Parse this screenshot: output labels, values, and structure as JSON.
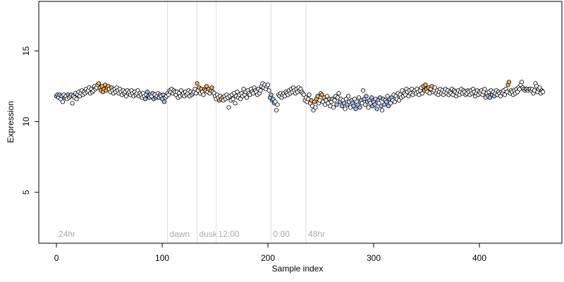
{
  "chart_data": {
    "type": "scatter",
    "xlabel": "Sample index",
    "ylabel": "Expression",
    "xlim": [
      -16.7,
      478
    ],
    "ylim": [
      1.4,
      18.5
    ],
    "xticks": [
      0,
      100,
      200,
      300,
      400
    ],
    "yticks": [
      5,
      10,
      15
    ],
    "palette": [
      "#ffffff",
      "#f4b060",
      "#a8c4f0"
    ],
    "stroke": "#000000",
    "markers": [
      {
        "label": "24hr",
        "x": 0,
        "line": false
      },
      {
        "label": "dawn",
        "x": 105,
        "line": true
      },
      {
        "label": "dusk",
        "x": 133,
        "line": true
      },
      {
        "label": "12:00",
        "x": 151,
        "line": true
      },
      {
        "label": "0:00",
        "x": 203,
        "line": true
      },
      {
        "label": "48hr",
        "x": 236,
        "line": true
      }
    ],
    "values": [
      11.8,
      11.9,
      11.7,
      11.9,
      11.6,
      11.8,
      11.4,
      11.9,
      11.7,
      11.8,
      11.6,
      11.9,
      11.7,
      11.8,
      11.9,
      11.3,
      11.8,
      11.7,
      12.0,
      11.6,
      11.9,
      12.1,
      11.8,
      12.0,
      12.2,
      11.9,
      12.1,
      12.0,
      12.3,
      12.1,
      12.2,
      12.4,
      12.0,
      12.3,
      12.1,
      12.2,
      12.5,
      12.3,
      12.4,
      12.6,
      12.7,
      12.4,
      12.2,
      12.5,
      12.1,
      12.3,
      12.6,
      12.2,
      12.4,
      12.5,
      12.3,
      12.1,
      12.4,
      12.2,
      12.0,
      12.3,
      12.1,
      12.4,
      12.2,
      12.0,
      12.3,
      12.1,
      11.9,
      12.2,
      12.0,
      12.1,
      11.8,
      12.2,
      12.0,
      12.1,
      11.9,
      12.2,
      12.0,
      11.8,
      12.1,
      11.9,
      12.0,
      12.2,
      11.8,
      12.0,
      11.9,
      11.7,
      12.0,
      11.8,
      11.6,
      11.9,
      12.1,
      11.8,
      11.7,
      11.9,
      11.8,
      12.0,
      11.6,
      11.9,
      11.7,
      11.8,
      12.0,
      11.7,
      11.9,
      11.8,
      11.6,
      11.9,
      11.4,
      11.7,
      11.8,
      12.0,
      11.9,
      12.2,
      12.1,
      12.3,
      12.0,
      12.2,
      12.1,
      11.9,
      12.1,
      11.7,
      12.0,
      11.8,
      12.2,
      11.9,
      12.0,
      11.8,
      12.1,
      11.9,
      12.0,
      12.2,
      11.8,
      12.1,
      11.9,
      12.0,
      12.1,
      12.3,
      12.0,
      12.7,
      12.2,
      12.4,
      12.0,
      12.3,
      12.1,
      11.9,
      12.3,
      12.2,
      12.5,
      12.1,
      12.3,
      12.0,
      12.2,
      12.4,
      12.1,
      12.0,
      11.8,
      11.6,
      11.9,
      11.7,
      11.5,
      11.8,
      11.6,
      11.7,
      11.5,
      11.8,
      11.6,
      11.9,
      11.7,
      11.0,
      11.8,
      11.5,
      11.9,
      11.6,
      12.0,
      11.3,
      11.8,
      12.1,
      11.7,
      11.9,
      11.6,
      12.0,
      11.8,
      12.3,
      11.9,
      12.1,
      11.7,
      12.2,
      12.0,
      11.9,
      12.3,
      12.1,
      12.0,
      12.4,
      12.2,
      12.1,
      11.9,
      12.3,
      12.0,
      12.2,
      12.5,
      12.7,
      12.4,
      12.6,
      12.3,
      12.5,
      12.6,
      12.2,
      11.7,
      11.9,
      11.5,
      11.6,
      11.3,
      11.4,
      10.8,
      11.2,
      11.9,
      11.8,
      12.0,
      11.7,
      11.9,
      12.0,
      11.8,
      12.1,
      12.0,
      11.9,
      12.2,
      12.0,
      12.3,
      12.1,
      12.4,
      12.2,
      12.0,
      12.3,
      12.1,
      12.4,
      12.2,
      12.3,
      12.1,
      12.0,
      11.9,
      11.5,
      11.7,
      11.4,
      11.6,
      11.9,
      11.3,
      11.5,
      11.1,
      10.8,
      11.4,
      11.0,
      11.6,
      11.8,
      11.3,
      11.5,
      12.0,
      11.9,
      11.4,
      11.7,
      11.2,
      11.5,
      11.8,
      11.3,
      11.6,
      11.1,
      11.4,
      11.6,
      11.0,
      11.5,
      11.8,
      11.2,
      11.7,
      12.0,
      11.4,
      11.6,
      11.1,
      11.5,
      11.3,
      10.9,
      11.6,
      11.2,
      11.8,
      11.4,
      11.0,
      11.5,
      11.3,
      11.1,
      11.6,
      10.9,
      11.4,
      11.2,
      11.7,
      11.0,
      11.5,
      11.3,
      12.2,
      11.6,
      11.2,
      11.8,
      11.4,
      11.0,
      11.5,
      11.3,
      11.7,
      11.1,
      11.4,
      11.2,
      11.6,
      10.9,
      11.5,
      11.3,
      11.7,
      11.1,
      10.8,
      11.6,
      11.2,
      11.5,
      11.4,
      11.8,
      11.1,
      11.6,
      11.3,
      11.7,
      11.5,
      11.9,
      11.4,
      11.8,
      11.6,
      12.0,
      11.5,
      11.9,
      11.7,
      12.2,
      11.8,
      12.0,
      11.9,
      12.3,
      12.1,
      11.8,
      12.2,
      12.0,
      12.3,
      11.9,
      12.1,
      12.2,
      12.0,
      12.3,
      12.1,
      11.9,
      12.2,
      12.4,
      12.0,
      12.5,
      12.2,
      12.6,
      12.3,
      12.1,
      12.4,
      12.0,
      12.3,
      12.5,
      12.1,
      12.2,
      12.4,
      12.0,
      12.2,
      11.9,
      12.1,
      12.3,
      12.0,
      12.2,
      11.9,
      12.1,
      12.3,
      12.0,
      12.2,
      11.9,
      12.1,
      12.0,
      12.3,
      11.9,
      12.2,
      12.1,
      11.8,
      12.0,
      12.2,
      11.9,
      12.1,
      12.3,
      12.0,
      12.2,
      12.1,
      11.9,
      12.0,
      12.2,
      12.1,
      11.9,
      12.2,
      12.0,
      12.3,
      12.1,
      11.8,
      12.0,
      12.2,
      11.9,
      12.1,
      12.0,
      12.2,
      11.9,
      12.1,
      12.3,
      11.7,
      12.0,
      11.8,
      12.1,
      11.7,
      12.2,
      11.9,
      12.1,
      11.8,
      12.0,
      12.2,
      11.9,
      12.1,
      12.0,
      11.8,
      12.1,
      12.0,
      12.2,
      11.9,
      12.3,
      12.1,
      12.6,
      12.8,
      12.0,
      12.2,
      12.1,
      11.9,
      12.2,
      12.0,
      12.3,
      12.1,
      12.4,
      12.3,
      12.6,
      12.8,
      12.4,
      12.3,
      12.2,
      12.3,
      12.3,
      12.2,
      12.3,
      12.3,
      12.2,
      12.3,
      12.0,
      12.2,
      12.7,
      12.5,
      12.1,
      12.3,
      12.4,
      12.0,
      12.2,
      12.1
    ],
    "fills": [
      2,
      2,
      0,
      2,
      0,
      2,
      0,
      0,
      2,
      0,
      0,
      2,
      0,
      0,
      2,
      0,
      0,
      0,
      0,
      0,
      0,
      0,
      0,
      0,
      0,
      0,
      0,
      0,
      0,
      0,
      0,
      0,
      0,
      0,
      0,
      0,
      0,
      0,
      0,
      0,
      1,
      1,
      1,
      1,
      1,
      1,
      1,
      1,
      1,
      1,
      0,
      0,
      1,
      0,
      0,
      0,
      0,
      0,
      0,
      0,
      0,
      0,
      0,
      0,
      0,
      0,
      0,
      0,
      0,
      0,
      0,
      0,
      0,
      0,
      0,
      0,
      0,
      0,
      0,
      0,
      0,
      0,
      0,
      0,
      2,
      0,
      2,
      2,
      2,
      0,
      0,
      2,
      2,
      0,
      2,
      0,
      0,
      2,
      2,
      0,
      2,
      2,
      2,
      0,
      0,
      0,
      0,
      0,
      0,
      0,
      0,
      0,
      0,
      0,
      0,
      0,
      0,
      0,
      0,
      0,
      0,
      0,
      0,
      0,
      0,
      0,
      0,
      0,
      0,
      0,
      0,
      0,
      0,
      1,
      0,
      1,
      0,
      1,
      0,
      0,
      1,
      1,
      1,
      0,
      1,
      0,
      1,
      1,
      0,
      0,
      0,
      0,
      0,
      0,
      1,
      0,
      0,
      1,
      0,
      0,
      0,
      0,
      0,
      0,
      0,
      0,
      0,
      0,
      0,
      0,
      0,
      0,
      0,
      0,
      0,
      0,
      0,
      0,
      0,
      0,
      0,
      0,
      0,
      0,
      0,
      0,
      0,
      0,
      0,
      0,
      0,
      0,
      0,
      0,
      0,
      0,
      0,
      0,
      0,
      0,
      0,
      0,
      2,
      2,
      2,
      2,
      2,
      0,
      0,
      0,
      0,
      0,
      0,
      0,
      0,
      0,
      0,
      0,
      0,
      0,
      0,
      0,
      0,
      0,
      0,
      0,
      0,
      0,
      0,
      0,
      0,
      0,
      0,
      0,
      0,
      0,
      0,
      0,
      0,
      0,
      0,
      1,
      0,
      0,
      1,
      0,
      1,
      1,
      0,
      0,
      0,
      1,
      0,
      1,
      0,
      0,
      0,
      0,
      1,
      0,
      0,
      2,
      0,
      0,
      0,
      2,
      0,
      0,
      2,
      0,
      2,
      0,
      2,
      0,
      0,
      2,
      0,
      0,
      0,
      2,
      2,
      2,
      0,
      2,
      0,
      2,
      0,
      2,
      2,
      0,
      0,
      2,
      0,
      2,
      2,
      0,
      2,
      0,
      2,
      2,
      2,
      2,
      0,
      2,
      2,
      0,
      2,
      2,
      0,
      2,
      2,
      0,
      2,
      0,
      2,
      2,
      0,
      2,
      0,
      0,
      0,
      0,
      0,
      0,
      0,
      0,
      0,
      0,
      0,
      0,
      0,
      0,
      0,
      0,
      0,
      0,
      0,
      0,
      0,
      0,
      0,
      0,
      0,
      0,
      0,
      0,
      0,
      1,
      1,
      1,
      1,
      0,
      1,
      0,
      0,
      1,
      0,
      0,
      0,
      0,
      0,
      0,
      0,
      0,
      0,
      0,
      0,
      0,
      0,
      0,
      0,
      0,
      0,
      0,
      0,
      0,
      0,
      0,
      0,
      0,
      0,
      0,
      0,
      0,
      0,
      0,
      0,
      0,
      0,
      0,
      0,
      0,
      0,
      0,
      0,
      0,
      0,
      0,
      0,
      0,
      0,
      0,
      0,
      0,
      0,
      0,
      0,
      0,
      2,
      0,
      2,
      0,
      2,
      0,
      2,
      0,
      0,
      0,
      0,
      0,
      0,
      0,
      0,
      0,
      0,
      0,
      0,
      1,
      1,
      0,
      0,
      0,
      0,
      0,
      0,
      0,
      0,
      0,
      0,
      0,
      0,
      0,
      0,
      0,
      0,
      0,
      0,
      0,
      0,
      0,
      0,
      0,
      0,
      0,
      0,
      0,
      0,
      0,
      0,
      2,
      0
    ]
  }
}
